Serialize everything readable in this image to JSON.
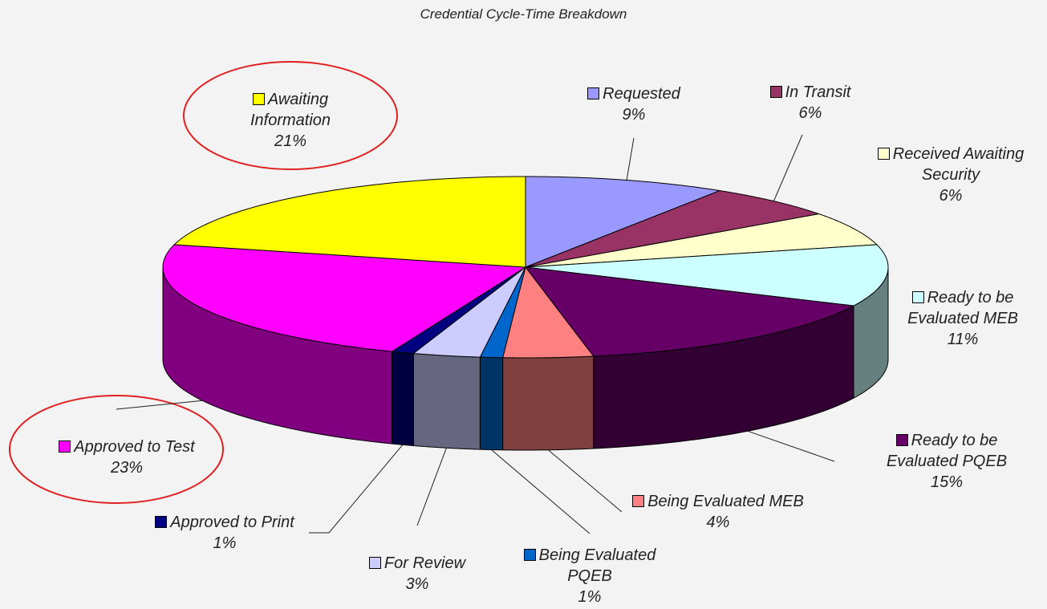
{
  "chart_data": {
    "type": "pie",
    "title": "Credential Cycle-Time Breakdown",
    "categories": [
      "Requested",
      "In Transit",
      "Received Awaiting Security",
      "Ready to be Evaluated MEB",
      "Ready to be Evaluated PQEB",
      "Being Evaluated MEB",
      "Being Evaluated PQEB",
      "For Review",
      "Approved to Print",
      "Approved to Test",
      "Awaiting Information"
    ],
    "values": [
      9,
      6,
      6,
      11,
      15,
      4,
      1,
      3,
      1,
      23,
      21
    ],
    "value_labels": [
      "9%",
      "6%",
      "6%",
      "11%",
      "15%",
      "4%",
      "1%",
      "3%",
      "1%",
      "23%",
      "21%"
    ],
    "colors": [
      "#9999ff",
      "#993366",
      "#ffffcc",
      "#ccffff",
      "#660066",
      "#ff8080",
      "#0066cc",
      "#ccccff",
      "#000080",
      "#ff00ff",
      "#ffff00"
    ]
  }
}
